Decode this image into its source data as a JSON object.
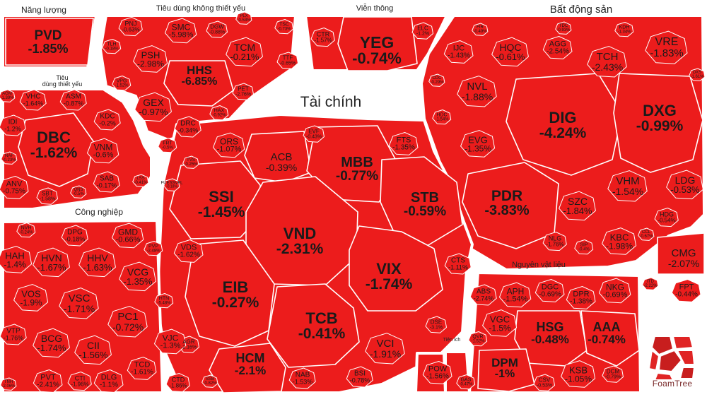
{
  "chart_data": {
    "type": "treemap",
    "colors": {
      "cell": "#ec1c1c",
      "cell_stroke": "#ffffff",
      "background": "#ffffff"
    },
    "groups": [
      {
        "name": "Năng lượng",
        "tickers": [
          {
            "s": "PVD",
            "v": "-1.85%"
          }
        ]
      },
      {
        "name": "Tiêu dùng không thiết yếu",
        "tickers": [
          {
            "s": "PNJ",
            "v": "-0.63%"
          },
          {
            "s": "SMC",
            "v": "-5.98%"
          },
          {
            "s": "DGW",
            "v": "-0.88%"
          },
          {
            "s": "PLX",
            "v": "-0.53%"
          },
          {
            "s": "TSC",
            "v": "-0.73%"
          },
          {
            "s": "TLH",
            "v": "-0.18%"
          },
          {
            "s": "PSH",
            "v": "-2.98%"
          },
          {
            "s": "TCM",
            "v": "-0.21%"
          },
          {
            "s": "HHS",
            "v": "-6.85%"
          },
          {
            "s": "VPG",
            "v": "-1.52%"
          },
          {
            "s": "TTF",
            "v": "-0.65%"
          },
          {
            "s": "PET",
            "v": "-2.76%"
          },
          {
            "s": "GEX",
            "v": "-0.97%"
          },
          {
            "s": "DRC",
            "v": "-0.34%"
          },
          {
            "s": "HAX",
            "v": "-0.92%"
          },
          {
            "s": "FRT",
            "v": "-0.5%"
          }
        ]
      },
      {
        "name": "Viễn thông",
        "tickers": [
          {
            "s": "CTR",
            "v": "-1.57%"
          },
          {
            "s": "YEG",
            "v": "-0.74%"
          },
          {
            "s": "ELC",
            "v": "-1.2%"
          }
        ]
      },
      {
        "name": "Bất động sản",
        "tickers": [
          {
            "s": "FIR",
            "v": "-0.49%"
          },
          {
            "s": "HQC",
            "v": "-0.61%"
          },
          {
            "s": "TDC",
            "v": "-0.93%"
          },
          {
            "s": "KDH",
            "v": "-1.34%"
          },
          {
            "s": "IJC",
            "v": "-1.43%"
          },
          {
            "s": "AGG",
            "v": "-2.54%"
          },
          {
            "s": "VRE",
            "v": "-1.83%"
          },
          {
            "s": "TCH",
            "v": "-2.43%"
          },
          {
            "s": "DXS",
            "v": "-1.61%"
          },
          {
            "s": "NVL",
            "v": "-1.88%"
          },
          {
            "s": "CDC",
            "v": "-0.29%"
          },
          {
            "s": "DIG",
            "v": "-4.24%"
          },
          {
            "s": "DXG",
            "v": "-0.99%"
          },
          {
            "s": "HDC",
            "v": "-1.54%"
          },
          {
            "s": "EVG",
            "v": "-1.35%"
          },
          {
            "s": "LDG",
            "v": "-0.53%"
          },
          {
            "s": "VHM",
            "v": "-1.54%"
          },
          {
            "s": "PDR",
            "v": "-3.83%"
          },
          {
            "s": "SZC",
            "v": "-1.84%"
          },
          {
            "s": "HDG",
            "v": "-0.54%"
          },
          {
            "s": "NLG",
            "v": "-1.76%"
          },
          {
            "s": "KBC",
            "v": "-1.98%"
          },
          {
            "s": "SIP",
            "v": "-0.4%"
          },
          {
            "s": "CCL",
            "v": "-0.67%"
          }
        ]
      },
      {
        "name": "Tiêu dùng thiết yếu",
        "tickers": [
          {
            "s": "AGM",
            "v": "-1.39%"
          },
          {
            "s": "VHC",
            "v": "-1.64%"
          },
          {
            "s": "ASM",
            "v": "-0.87%"
          },
          {
            "s": "IDI",
            "v": "-1.2%"
          },
          {
            "s": "KDC",
            "v": "-0.2%"
          },
          {
            "s": "DBC",
            "v": "-1.62%"
          },
          {
            "s": "VNM",
            "v": "-0.6%"
          },
          {
            "s": "NAF",
            "v": "-0.23%"
          },
          {
            "s": "SAB",
            "v": "-0.17%"
          },
          {
            "s": "ANV",
            "v": "-0.75%"
          },
          {
            "s": "LSS",
            "v": "-0.41%"
          },
          {
            "s": "SBT",
            "v": "-1.58%"
          },
          {
            "s": "QNS",
            "v": "-0.5%"
          }
        ]
      },
      {
        "name": "Tài chính",
        "tickers": [
          {
            "s": "EVF",
            "v": "-0.43%"
          },
          {
            "s": "ORS",
            "v": "-1.07%"
          },
          {
            "s": "ACB",
            "v": "-0.39%"
          },
          {
            "s": "MBB",
            "v": "-0.77%"
          },
          {
            "s": "FTS",
            "v": "-1.35%"
          },
          {
            "s": "TVS",
            "v": "-0.25%"
          },
          {
            "s": "SSI",
            "v": "-1.45%"
          },
          {
            "s": "STB",
            "v": "-0.59%"
          },
          {
            "s": "VND",
            "v": "-2.31%"
          },
          {
            "s": "VDS",
            "v": "-1.62%"
          },
          {
            "s": "VIX",
            "v": "-1.74%"
          },
          {
            "s": "CTS",
            "v": "-1.11%"
          },
          {
            "s": "EIB",
            "v": "-0.27%"
          },
          {
            "s": "TCB",
            "v": "-0.41%"
          },
          {
            "s": "AGR",
            "v": "-2.16%"
          },
          {
            "s": "HCM",
            "v": "-2.1%"
          },
          {
            "s": "VCI",
            "v": "-1.91%"
          },
          {
            "s": "DSE",
            "v": "-3.1%"
          },
          {
            "s": "NAB",
            "v": "-1.53%"
          },
          {
            "s": "BSI",
            "v": "-0.78%"
          },
          {
            "s": "SSB",
            "v": "-0.82%"
          },
          {
            "s": "FUESSVFL",
            "v": "-0.18%"
          }
        ]
      },
      {
        "name": "Công nghiệp",
        "tickers": [
          {
            "s": "NVH",
            "v": "-0.24%"
          },
          {
            "s": "DPG",
            "v": "-0.18%"
          },
          {
            "s": "GMD",
            "v": "-0.66%"
          },
          {
            "s": "HAH",
            "v": "-1.4%"
          },
          {
            "s": "HVN",
            "v": "-1.67%"
          },
          {
            "s": "HHV",
            "v": "-1.63%"
          },
          {
            "s": "PVP",
            "v": "-2.48%"
          },
          {
            "s": "VOS",
            "v": "-1.9%"
          },
          {
            "s": "VCG",
            "v": "-1.35%"
          },
          {
            "s": "VSC",
            "v": "-1.71%"
          },
          {
            "s": "HTN",
            "v": "-5.48%"
          },
          {
            "s": "PC1",
            "v": "-0.72%"
          },
          {
            "s": "VTP",
            "v": "-1.76%"
          },
          {
            "s": "BCG",
            "v": "-1.74%"
          },
          {
            "s": "VJC",
            "v": "-1.3%"
          },
          {
            "s": "CII",
            "v": "-1.56%"
          },
          {
            "s": "TCD",
            "v": "-1.61%"
          },
          {
            "s": "PVT",
            "v": "-2.41%"
          },
          {
            "s": "CTI",
            "v": "-1.96%"
          },
          {
            "s": "DLG",
            "v": "-1.1%"
          },
          {
            "s": "CTD",
            "v": "-1.86%"
          },
          {
            "s": "TNH",
            "v": "-2.06%"
          }
        ]
      },
      {
        "name": "Nguyên vật liệu",
        "tickers": [
          {
            "s": "ABS",
            "v": "-2.74%"
          },
          {
            "s": "APH",
            "v": "-1.54%"
          },
          {
            "s": "DGC",
            "v": "-0.69%"
          },
          {
            "s": "DPR",
            "v": "-1.38%"
          },
          {
            "s": "NKG",
            "v": "-0.69%"
          },
          {
            "s": "VGC",
            "v": "-1.5%"
          },
          {
            "s": "HSG",
            "v": "-0.48%"
          },
          {
            "s": "AAA",
            "v": "-0.74%"
          },
          {
            "s": "QVR",
            "v": "-1.52%"
          },
          {
            "s": "DPM",
            "v": "-1%"
          },
          {
            "s": "KSB",
            "v": "-1.05%"
          },
          {
            "s": "CSV",
            "v": "-0.53%"
          },
          {
            "s": "DCM",
            "v": "-0.79%"
          }
        ]
      },
      {
        "name": "Tiện ích",
        "tickers": [
          {
            "s": "POW",
            "v": "-1.56%"
          },
          {
            "s": "GAS",
            "v": "-0.47%"
          }
        ]
      },
      {
        "name": "",
        "tickers": [
          {
            "s": "CMG",
            "v": "-2.07%"
          },
          {
            "s": "ITD",
            "v": "-2.22%"
          },
          {
            "s": "FPT",
            "v": "-0.44%"
          }
        ]
      }
    ]
  },
  "branding": {
    "logo_text": "FoamTree"
  }
}
